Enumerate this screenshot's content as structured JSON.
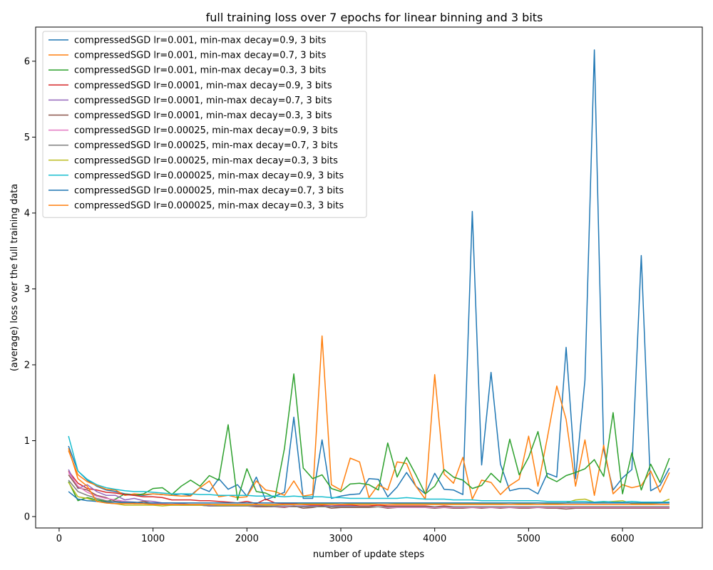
{
  "chart_data": {
    "type": "line",
    "title": "full training loss over 7 epochs for linear binning and 3 bits",
    "xlabel": "number of update steps",
    "ylabel": "(average) loss over the full training data",
    "xlim": [
      -250,
      6850
    ],
    "ylim": [
      -0.15,
      6.45
    ],
    "xticks": [
      0,
      1000,
      2000,
      3000,
      4000,
      5000,
      6000
    ],
    "yticks": [
      0,
      1,
      2,
      3,
      4,
      5,
      6
    ],
    "grid": false,
    "legend_position": "top-left",
    "x": [
      100,
      200,
      300,
      400,
      500,
      600,
      700,
      800,
      900,
      1000,
      1100,
      1200,
      1300,
      1400,
      1500,
      1600,
      1700,
      1800,
      1900,
      2000,
      2100,
      2200,
      2300,
      2400,
      2500,
      2600,
      2700,
      2800,
      2900,
      3000,
      3100,
      3200,
      3300,
      3400,
      3500,
      3600,
      3700,
      3800,
      3900,
      4000,
      4100,
      4200,
      4300,
      4400,
      4500,
      4600,
      4700,
      4800,
      4900,
      5000,
      5100,
      5200,
      5300,
      5400,
      5500,
      5600,
      5700,
      5800,
      5900,
      6000,
      6100,
      6200,
      6300,
      6400,
      6500
    ],
    "series": [
      {
        "name": "compressedSGD lr=0.001, min-max decay=0.9, 3 bits",
        "color": "#1f77b4",
        "values": [
          0.93,
          0.6,
          0.48,
          0.4,
          0.35,
          0.33,
          0.3,
          0.29,
          0.28,
          0.3,
          0.29,
          0.28,
          0.3,
          0.28,
          0.38,
          0.33,
          0.5,
          0.36,
          0.42,
          0.27,
          0.52,
          0.22,
          0.27,
          0.32,
          1.31,
          0.24,
          0.24,
          1.01,
          0.24,
          0.27,
          0.29,
          0.3,
          0.5,
          0.49,
          0.26,
          0.39,
          0.58,
          0.4,
          0.3,
          0.57,
          0.36,
          0.35,
          0.29,
          4.02,
          0.68,
          1.9,
          0.69,
          0.34,
          0.37,
          0.37,
          0.3,
          0.57,
          0.52,
          2.23,
          0.5,
          1.8,
          6.15,
          0.88,
          0.35,
          0.51,
          0.62,
          3.44,
          0.34,
          0.41,
          0.64
        ]
      },
      {
        "name": "compressedSGD lr=0.001, min-max decay=0.7, 3 bits",
        "color": "#ff7f0e",
        "values": [
          0.87,
          0.55,
          0.46,
          0.41,
          0.36,
          0.35,
          0.28,
          0.3,
          0.29,
          0.3,
          0.29,
          0.28,
          0.27,
          0.27,
          0.38,
          0.47,
          0.26,
          0.28,
          0.25,
          0.26,
          0.47,
          0.35,
          0.33,
          0.28,
          0.47,
          0.27,
          0.29,
          2.38,
          0.42,
          0.35,
          0.77,
          0.72,
          0.25,
          0.42,
          0.35,
          0.72,
          0.7,
          0.4,
          0.23,
          1.87,
          0.56,
          0.44,
          0.78,
          0.23,
          0.48,
          0.45,
          0.29,
          0.41,
          0.49,
          1.06,
          0.4,
          1.04,
          1.72,
          1.28,
          0.4,
          1.01,
          0.28,
          0.94,
          0.3,
          0.42,
          0.38,
          0.41,
          0.6,
          0.32,
          0.58
        ]
      },
      {
        "name": "compressedSGD lr=0.001, min-max decay=0.3, 3 bits",
        "color": "#2ca02c",
        "values": [
          0.46,
          0.21,
          0.25,
          0.22,
          0.2,
          0.23,
          0.3,
          0.28,
          0.3,
          0.37,
          0.38,
          0.29,
          0.4,
          0.48,
          0.4,
          0.54,
          0.48,
          1.21,
          0.22,
          0.63,
          0.33,
          0.31,
          0.25,
          0.9,
          1.88,
          0.64,
          0.5,
          0.55,
          0.37,
          0.33,
          0.43,
          0.44,
          0.42,
          0.35,
          0.97,
          0.52,
          0.78,
          0.55,
          0.3,
          0.4,
          0.62,
          0.52,
          0.48,
          0.37,
          0.41,
          0.57,
          0.45,
          1.02,
          0.55,
          0.78,
          1.12,
          0.52,
          0.46,
          0.54,
          0.58,
          0.63,
          0.75,
          0.53,
          1.37,
          0.3,
          0.84,
          0.35,
          0.69,
          0.45,
          0.77
        ]
      },
      {
        "name": "compressedSGD lr=0.0001, min-max decay=0.9, 3 bits",
        "color": "#d62728",
        "values": [
          0.6,
          0.44,
          0.37,
          0.35,
          0.32,
          0.31,
          0.29,
          0.28,
          0.26,
          0.26,
          0.25,
          0.22,
          0.22,
          0.22,
          0.21,
          0.21,
          0.2,
          0.19,
          0.18,
          0.2,
          0.17,
          0.23,
          0.18,
          0.17,
          0.17,
          0.16,
          0.15,
          0.15,
          0.14,
          0.15,
          0.15,
          0.14,
          0.14,
          0.15,
          0.14,
          0.14,
          0.14,
          0.14,
          0.14,
          0.13,
          0.14,
          0.13,
          0.13,
          0.13,
          0.13,
          0.13,
          0.13,
          0.13,
          0.13,
          0.13,
          0.13,
          0.13,
          0.13,
          0.12,
          0.13,
          0.12,
          0.12,
          0.12,
          0.12,
          0.12,
          0.12,
          0.12,
          0.12,
          0.12,
          0.12
        ]
      },
      {
        "name": "compressedSGD lr=0.0001, min-max decay=0.7, 3 bits",
        "color": "#9467bd",
        "values": [
          0.62,
          0.37,
          0.42,
          0.33,
          0.28,
          0.28,
          0.22,
          0.24,
          0.21,
          0.2,
          0.18,
          0.18,
          0.17,
          0.16,
          0.16,
          0.16,
          0.15,
          0.15,
          0.15,
          0.15,
          0.15,
          0.15,
          0.14,
          0.14,
          0.14,
          0.14,
          0.14,
          0.14,
          0.14,
          0.14,
          0.14,
          0.13,
          0.13,
          0.13,
          0.13,
          0.13,
          0.13,
          0.13,
          0.13,
          0.13,
          0.13,
          0.13,
          0.13,
          0.13,
          0.13,
          0.13,
          0.13,
          0.13,
          0.12,
          0.12,
          0.12,
          0.12,
          0.12,
          0.12,
          0.12,
          0.12,
          0.12,
          0.12,
          0.12,
          0.12,
          0.12,
          0.12,
          0.12,
          0.12,
          0.12
        ]
      },
      {
        "name": "compressedSGD lr=0.0001, min-max decay=0.3, 3 bits",
        "color": "#8c564b",
        "values": [
          0.55,
          0.38,
          0.35,
          0.28,
          0.25,
          0.2,
          0.19,
          0.18,
          0.2,
          0.17,
          0.16,
          0.16,
          0.15,
          0.15,
          0.15,
          0.14,
          0.14,
          0.14,
          0.14,
          0.14,
          0.13,
          0.13,
          0.13,
          0.12,
          0.14,
          0.11,
          0.12,
          0.14,
          0.11,
          0.12,
          0.12,
          0.12,
          0.12,
          0.13,
          0.11,
          0.12,
          0.12,
          0.12,
          0.12,
          0.11,
          0.12,
          0.11,
          0.11,
          0.12,
          0.11,
          0.12,
          0.11,
          0.12,
          0.11,
          0.11,
          0.12,
          0.11,
          0.11,
          0.1,
          0.11,
          0.11,
          0.11,
          0.11,
          0.11,
          0.11,
          0.11,
          0.11,
          0.11,
          0.11,
          0.11
        ]
      },
      {
        "name": "compressedSGD lr=0.00025, min-max decay=0.9, 3 bits",
        "color": "#e377c2",
        "values": [
          0.58,
          0.4,
          0.32,
          0.27,
          0.24,
          0.22,
          0.2,
          0.19,
          0.18,
          0.17,
          0.17,
          0.16,
          0.16,
          0.15,
          0.15,
          0.15,
          0.15,
          0.14,
          0.14,
          0.14,
          0.14,
          0.14,
          0.13,
          0.13,
          0.13,
          0.13,
          0.13,
          0.13,
          0.13,
          0.13,
          0.13,
          0.13,
          0.13,
          0.13,
          0.12,
          0.12,
          0.12,
          0.12,
          0.12,
          0.12,
          0.12,
          0.12,
          0.12,
          0.12,
          0.12,
          0.12,
          0.12,
          0.12,
          0.12,
          0.12,
          0.12,
          0.12,
          0.12,
          0.12,
          0.12,
          0.12,
          0.12,
          0.12,
          0.12,
          0.12,
          0.12,
          0.12,
          0.12,
          0.12,
          0.12
        ]
      },
      {
        "name": "compressedSGD lr=0.00025, min-max decay=0.7, 3 bits",
        "color": "#7f7f7f",
        "values": [
          0.48,
          0.33,
          0.28,
          0.24,
          0.21,
          0.19,
          0.18,
          0.17,
          0.17,
          0.16,
          0.16,
          0.15,
          0.15,
          0.15,
          0.15,
          0.14,
          0.14,
          0.14,
          0.14,
          0.14,
          0.14,
          0.14,
          0.13,
          0.14,
          0.13,
          0.13,
          0.13,
          0.13,
          0.13,
          0.13,
          0.13,
          0.13,
          0.13,
          0.13,
          0.13,
          0.13,
          0.13,
          0.13,
          0.13,
          0.13,
          0.13,
          0.13,
          0.13,
          0.13,
          0.13,
          0.13,
          0.13,
          0.13,
          0.13,
          0.13,
          0.13,
          0.13,
          0.13,
          0.13,
          0.13,
          0.13,
          0.13,
          0.13,
          0.13,
          0.13,
          0.13,
          0.13,
          0.13,
          0.13,
          0.13
        ]
      },
      {
        "name": "compressedSGD lr=0.00025, min-max decay=0.3, 3 bits",
        "color": "#bcbd22",
        "values": [
          0.45,
          0.26,
          0.24,
          0.2,
          0.18,
          0.17,
          0.15,
          0.15,
          0.15,
          0.15,
          0.14,
          0.15,
          0.15,
          0.15,
          0.15,
          0.16,
          0.15,
          0.15,
          0.15,
          0.15,
          0.16,
          0.15,
          0.15,
          0.16,
          0.16,
          0.17,
          0.17,
          0.17,
          0.17,
          0.18,
          0.17,
          0.17,
          0.17,
          0.18,
          0.18,
          0.17,
          0.17,
          0.17,
          0.17,
          0.17,
          0.17,
          0.17,
          0.17,
          0.17,
          0.17,
          0.17,
          0.17,
          0.18,
          0.17,
          0.17,
          0.18,
          0.17,
          0.17,
          0.18,
          0.22,
          0.23,
          0.19,
          0.19,
          0.2,
          0.21,
          0.17,
          0.17,
          0.17,
          0.18,
          0.23
        ]
      },
      {
        "name": "compressedSGD lr=0.000025, min-max decay=0.9, 3 bits",
        "color": "#17becf",
        "values": [
          1.06,
          0.6,
          0.49,
          0.42,
          0.38,
          0.36,
          0.34,
          0.33,
          0.33,
          0.32,
          0.31,
          0.3,
          0.3,
          0.3,
          0.29,
          0.29,
          0.28,
          0.28,
          0.28,
          0.28,
          0.27,
          0.27,
          0.27,
          0.26,
          0.27,
          0.26,
          0.26,
          0.26,
          0.25,
          0.25,
          0.24,
          0.24,
          0.24,
          0.24,
          0.24,
          0.24,
          0.25,
          0.24,
          0.23,
          0.23,
          0.23,
          0.22,
          0.22,
          0.22,
          0.21,
          0.21,
          0.21,
          0.21,
          0.21,
          0.21,
          0.21,
          0.2,
          0.2,
          0.2,
          0.2,
          0.2,
          0.19,
          0.2,
          0.19,
          0.19,
          0.2,
          0.19,
          0.19,
          0.19,
          0.19
        ]
      },
      {
        "name": "compressedSGD lr=0.000025, min-max decay=0.7, 3 bits",
        "color": "#1f77b4",
        "values": [
          0.33,
          0.23,
          0.21,
          0.2,
          0.19,
          0.19,
          0.19,
          0.19,
          0.18,
          0.18,
          0.18,
          0.18,
          0.18,
          0.18,
          0.18,
          0.18,
          0.18,
          0.18,
          0.18,
          0.18,
          0.18,
          0.18,
          0.18,
          0.18,
          0.18,
          0.18,
          0.18,
          0.18,
          0.18,
          0.18,
          0.18,
          0.18,
          0.18,
          0.18,
          0.18,
          0.18,
          0.18,
          0.18,
          0.18,
          0.18,
          0.18,
          0.18,
          0.18,
          0.18,
          0.18,
          0.18,
          0.18,
          0.18,
          0.18,
          0.18,
          0.18,
          0.18,
          0.18,
          0.18,
          0.18,
          0.18,
          0.18,
          0.18,
          0.18,
          0.18,
          0.18,
          0.18,
          0.18,
          0.18,
          0.18
        ]
      },
      {
        "name": "compressedSGD lr=0.000025, min-max decay=0.3, 3 bits",
        "color": "#ff7f0e",
        "values": [
          0.9,
          0.5,
          0.4,
          0.2,
          0.18,
          0.17,
          0.17,
          0.17,
          0.17,
          0.16,
          0.16,
          0.16,
          0.16,
          0.16,
          0.16,
          0.16,
          0.16,
          0.16,
          0.16,
          0.16,
          0.16,
          0.16,
          0.16,
          0.16,
          0.16,
          0.16,
          0.16,
          0.16,
          0.16,
          0.16,
          0.16,
          0.16,
          0.16,
          0.16,
          0.16,
          0.16,
          0.16,
          0.16,
          0.16,
          0.16,
          0.16,
          0.16,
          0.16,
          0.16,
          0.16,
          0.16,
          0.16,
          0.16,
          0.16,
          0.16,
          0.16,
          0.16,
          0.16,
          0.16,
          0.16,
          0.16,
          0.16,
          0.16,
          0.16,
          0.16,
          0.16,
          0.16,
          0.16,
          0.16,
          0.16
        ]
      }
    ]
  }
}
